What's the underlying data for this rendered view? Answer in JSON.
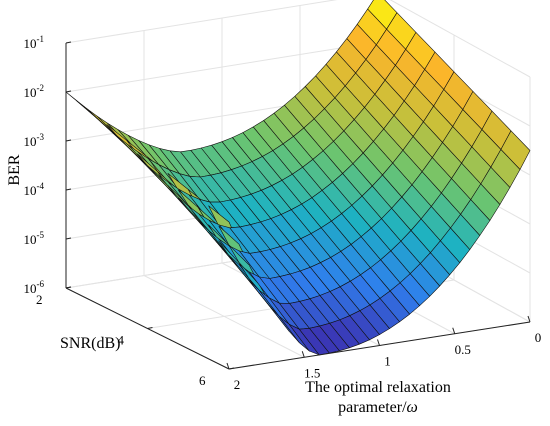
{
  "chart_data": {
    "type": "surface",
    "x": {
      "label_line1": "The optimal relaxation",
      "label_line2": "parameter/",
      "label_symbol": "ω",
      "ticks": [
        2,
        1.5,
        1,
        0.5,
        0
      ],
      "tick_labels": [
        "2",
        "1.5",
        "1",
        "0.5",
        "0"
      ],
      "range": [
        0,
        2
      ]
    },
    "y": {
      "label": "SNR(dB)",
      "ticks": [
        2,
        4,
        6
      ],
      "tick_labels": [
        "2",
        "4",
        "6"
      ],
      "range": [
        2,
        6
      ]
    },
    "z": {
      "label": "BER",
      "scale": "log",
      "range_exponent": [
        -6,
        -1
      ],
      "tick_base": "10",
      "tick_exponents": [
        "-6",
        "-5",
        "-4",
        "-3",
        "-2",
        "-1"
      ]
    },
    "surface_samples": [
      {
        "omega": 0,
        "snr": 2,
        "ber_exp": -1.0
      },
      {
        "omega": 0,
        "snr": 6,
        "ber_exp": -2.5
      },
      {
        "omega": 1.4,
        "snr": 6,
        "ber_exp": -6.0
      },
      {
        "omega": 2,
        "snr": 2,
        "ber_exp": -2.0
      },
      {
        "omega": 2,
        "snr": 6,
        "ber_exp": -3.0
      }
    ],
    "colormap": [
      "#3d26a8",
      "#2f7fed",
      "#1eb2c2",
      "#6ec56d",
      "#c8c03a",
      "#fbb52b",
      "#f9fb0e"
    ],
    "grid": true
  }
}
